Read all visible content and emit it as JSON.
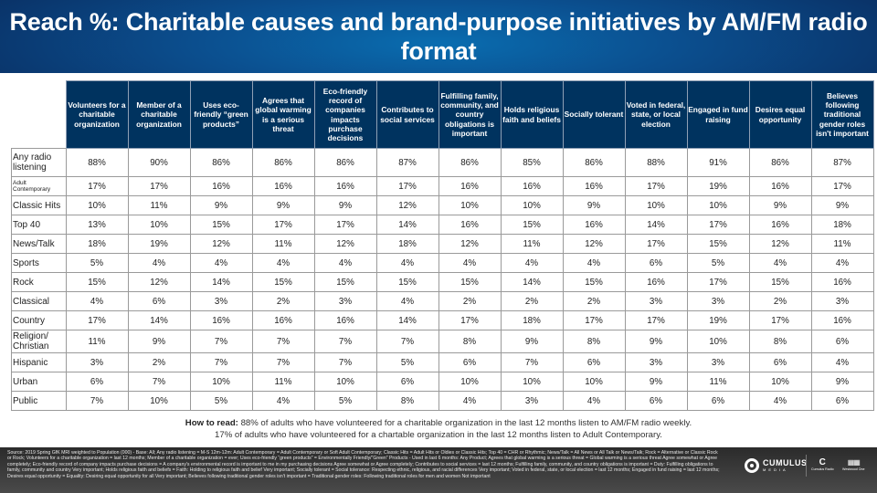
{
  "title": "Reach %: Charitable causes and brand-purpose initiatives by AM/FM radio format",
  "columns": [
    "Volunteers for a charitable organization",
    "Member of a charitable organization",
    "Uses eco-friendly “green products”",
    "Agrees that global warming is a serious threat",
    "Eco-friendly record of companies impacts purchase decisions",
    "Contributes to social services",
    "Fulfilling family, community, and country obligations is important",
    "Holds religious faith and beliefs",
    "Socially tolerant",
    "Voted in federal, state, or local election",
    "Engaged in fund raising",
    "Desires equal opportunity",
    "Believes following traditional gender roles isn't important"
  ],
  "rows": [
    {
      "label": "Any radio listening",
      "values": [
        "88%",
        "90%",
        "86%",
        "86%",
        "86%",
        "87%",
        "86%",
        "85%",
        "86%",
        "88%",
        "91%",
        "86%",
        "87%"
      ]
    },
    {
      "label": "Adult Contemporary",
      "values": [
        "17%",
        "17%",
        "16%",
        "16%",
        "16%",
        "17%",
        "16%",
        "16%",
        "16%",
        "17%",
        "19%",
        "16%",
        "17%"
      ]
    },
    {
      "label": "Classic Hits",
      "values": [
        "10%",
        "11%",
        "9%",
        "9%",
        "9%",
        "12%",
        "10%",
        "10%",
        "9%",
        "10%",
        "10%",
        "9%",
        "9%"
      ]
    },
    {
      "label": "Top 40",
      "values": [
        "13%",
        "10%",
        "15%",
        "17%",
        "17%",
        "14%",
        "16%",
        "15%",
        "16%",
        "14%",
        "17%",
        "16%",
        "18%"
      ]
    },
    {
      "label": "News/Talk",
      "values": [
        "18%",
        "19%",
        "12%",
        "11%",
        "12%",
        "18%",
        "12%",
        "11%",
        "12%",
        "17%",
        "15%",
        "12%",
        "11%"
      ]
    },
    {
      "label": "Sports",
      "values": [
        "5%",
        "4%",
        "4%",
        "4%",
        "4%",
        "4%",
        "4%",
        "4%",
        "4%",
        "6%",
        "5%",
        "4%",
        "4%"
      ]
    },
    {
      "label": "Rock",
      "values": [
        "15%",
        "12%",
        "14%",
        "15%",
        "15%",
        "15%",
        "15%",
        "14%",
        "15%",
        "16%",
        "17%",
        "15%",
        "16%"
      ]
    },
    {
      "label": "Classical",
      "values": [
        "4%",
        "6%",
        "3%",
        "2%",
        "3%",
        "4%",
        "2%",
        "2%",
        "2%",
        "3%",
        "3%",
        "2%",
        "3%"
      ]
    },
    {
      "label": "Country",
      "values": [
        "17%",
        "14%",
        "16%",
        "16%",
        "16%",
        "14%",
        "17%",
        "18%",
        "17%",
        "17%",
        "19%",
        "17%",
        "16%"
      ]
    },
    {
      "label": "Religion/ Christian",
      "values": [
        "11%",
        "9%",
        "7%",
        "7%",
        "7%",
        "7%",
        "8%",
        "9%",
        "8%",
        "9%",
        "10%",
        "8%",
        "6%"
      ]
    },
    {
      "label": "Hispanic",
      "values": [
        "3%",
        "2%",
        "7%",
        "7%",
        "7%",
        "5%",
        "6%",
        "7%",
        "6%",
        "3%",
        "3%",
        "6%",
        "4%"
      ]
    },
    {
      "label": "Urban",
      "values": [
        "6%",
        "7%",
        "10%",
        "11%",
        "10%",
        "6%",
        "10%",
        "10%",
        "10%",
        "9%",
        "11%",
        "10%",
        "9%"
      ]
    },
    {
      "label": "Public",
      "values": [
        "7%",
        "10%",
        "5%",
        "4%",
        "5%",
        "8%",
        "4%",
        "3%",
        "4%",
        "6%",
        "6%",
        "4%",
        "6%"
      ]
    }
  ],
  "how_to_read": {
    "label": "How to read:",
    "line1": "88% of adults who have volunteered for a charitable organization in the last 12 months listen to AM/FM radio weekly.",
    "line2": "17% of adults who have volunteered for a chartable organization in the last 12 months listen to Adult Contemporary."
  },
  "source": "Source: 2019 Spring GfK MRI weighted to Population (000) - Base: All; Any radio listening = M-S 12m-12m: Adult Contemporary = Adult Contemporary or Soft Adult Contemporary; Classic Hits = Adult Hits or Oldies or Classic Hits; Top 40 = CHR or Rhythmic; News/Talk = All News or All Talk or News/Talk; Rock = Alternative or Classic Rock or Rock; Volunteers for a charitable organization = last 12 months; Member of a charitable organization = ever; Uses eco-friendly “green products” = Environmentally Friendly/“Green” Products - Used in last 6 months: Any Product; Agrees that global warming is a serious threat = Global warming is a serious threat Agree somewhat or Agree completely; Eco-friendly record of company impacts purchase decisions = A company's environmental record is important to me in my purchasing decisions Agree somewhat or Agree completely; Contributes to social services = last 12 months; Fulfilling family, community, and country obligations is important = Duty: Fulfilling obligations to family, community and country Very important; Holds religious faith and beliefs = Faith: Holding to religious faith and belief Very important; Socially tolerant = Social tolerance: Respecting ethnic, religious, and racial differences Very important; Voted in federal, state, or local election = last 12 months; Engaged in fund raising = last 12 months; Desires equal opportunity = Equality: Desiring equal opportunity for all Very important; Believes following traditional gender roles isn't important = Traditional gender roles: Following traditional roles for men and women Not important",
  "logos": {
    "cumulus_name": "CUMULUS",
    "cumulus_sub": "MEDIA",
    "cr_name": "Cumulus Radio",
    "wo_name": "Westwood One"
  },
  "colors": {
    "header_bg": "#00335f",
    "title_bg": "#0b4f8f",
    "footer_bg": "#2b2b2b"
  }
}
